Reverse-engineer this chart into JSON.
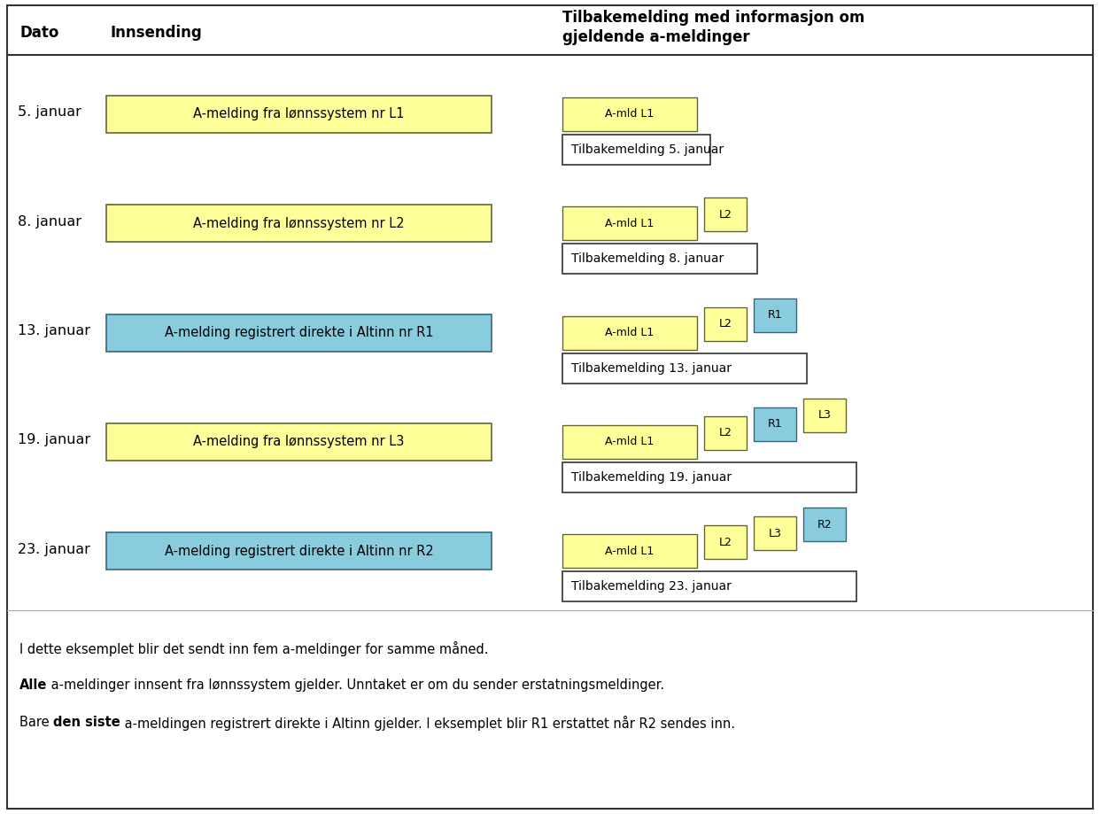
{
  "title_date": "Dato",
  "title_innsending": "Innsending",
  "title_tilbakemelding": "Tilbakemelding med informasjon om\ngjeldende a-meldinger",
  "rows": [
    {
      "date": "5. januar",
      "innsending_text": "A-melding fra lønnssystem nr L1",
      "innsending_color": "#FFFF99",
      "feedback_text": "Tilbakemelding 5. januar",
      "stacked": [
        {
          "label": "A-mld L1",
          "color": "#FFFF99",
          "wide": true
        }
      ]
    },
    {
      "date": "8. januar",
      "innsending_text": "A-melding fra lønnssystem nr L2",
      "innsending_color": "#FFFF99",
      "feedback_text": "Tilbakemelding 8. januar",
      "stacked": [
        {
          "label": "A-mld L1",
          "color": "#FFFF99",
          "wide": true
        },
        {
          "label": "L2",
          "color": "#FFFF99",
          "wide": false
        }
      ]
    },
    {
      "date": "13. januar",
      "innsending_text": "A-melding registrert direkte i Altinn nr R1",
      "innsending_color": "#88CCDD",
      "feedback_text": "Tilbakemelding 13. januar",
      "stacked": [
        {
          "label": "A-mld L1",
          "color": "#FFFF99",
          "wide": true
        },
        {
          "label": "L2",
          "color": "#FFFF99",
          "wide": false
        },
        {
          "label": "R1",
          "color": "#88CCDD",
          "wide": false
        }
      ]
    },
    {
      "date": "19. januar",
      "innsending_text": "A-melding fra lønnssystem nr L3",
      "innsending_color": "#FFFF99",
      "feedback_text": "Tilbakemelding 19. januar",
      "stacked": [
        {
          "label": "A-mld L1",
          "color": "#FFFF99",
          "wide": true
        },
        {
          "label": "L2",
          "color": "#FFFF99",
          "wide": false
        },
        {
          "label": "R1",
          "color": "#88CCDD",
          "wide": false
        },
        {
          "label": "L3",
          "color": "#FFFF99",
          "wide": false
        }
      ]
    },
    {
      "date": "23. januar",
      "innsending_text": "A-melding registrert direkte i Altinn nr R2",
      "innsending_color": "#88CCDD",
      "feedback_text": "Tilbakemelding 23. januar",
      "stacked": [
        {
          "label": "A-mld L1",
          "color": "#FFFF99",
          "wide": true
        },
        {
          "label": "L2",
          "color": "#FFFF99",
          "wide": false
        },
        {
          "label": "L3",
          "color": "#FFFF99",
          "wide": false
        },
        {
          "label": "R2",
          "color": "#88CCDD",
          "wide": false
        }
      ]
    }
  ],
  "footer_lines": [
    {
      "text": "I dette eksemplet blir det sendt inn fem a-meldinger for samme måned.",
      "bold_parts": []
    },
    {
      "text_parts": [
        {
          "t": "Alle",
          "bold": true
        },
        {
          "t": " a-meldinger innsent fra lønnssystem gjelder. Unntaket er om du sender erstatningsmeldinger.",
          "bold": false
        }
      ]
    },
    {
      "text_parts": [
        {
          "t": "Bare ",
          "bold": false
        },
        {
          "t": "den siste",
          "bold": true
        },
        {
          "t": " a-meldingen registrert direkte i Altinn gjelder. I eksemplet blir R1 erstattet når R2 sendes inn.",
          "bold": false
        }
      ]
    }
  ],
  "bg_color": "#FFFFFF",
  "border_color": "#333333",
  "yellow_color": "#FFFF99",
  "cyan_color": "#88CCDD",
  "fig_w": 12.42,
  "fig_h": 9.19
}
